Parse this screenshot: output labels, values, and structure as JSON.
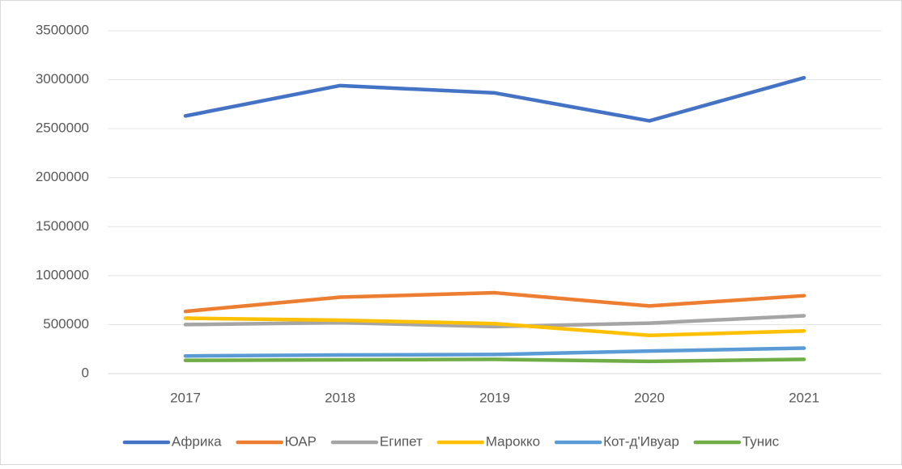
{
  "chart_data": {
    "type": "line",
    "categories": [
      "2017",
      "2018",
      "2019",
      "2020",
      "2021"
    ],
    "series": [
      {
        "name": "Африка",
        "color": "#4472c4",
        "values": [
          2630000,
          2940000,
          2865000,
          2580000,
          3020000
        ]
      },
      {
        "name": "ЮАР",
        "color": "#ed7d31",
        "values": [
          635000,
          780000,
          825000,
          690000,
          795000
        ]
      },
      {
        "name": "Египет",
        "color": "#a5a5a5",
        "values": [
          500000,
          520000,
          480000,
          515000,
          590000
        ]
      },
      {
        "name": "Марокко",
        "color": "#ffc000",
        "values": [
          565000,
          545000,
          510000,
          390000,
          435000
        ]
      },
      {
        "name": "Кот-д'Ивуар",
        "color": "#5b9bd5",
        "values": [
          180000,
          190000,
          195000,
          230000,
          260000
        ]
      },
      {
        "name": "Тунис",
        "color": "#70ad47",
        "values": [
          135000,
          140000,
          145000,
          125000,
          145000
        ]
      }
    ],
    "ylim": [
      0,
      3500000
    ],
    "yticks": [
      0,
      500000,
      1000000,
      1500000,
      2000000,
      2500000,
      3000000,
      3500000
    ],
    "grid": true,
    "legend": "bottom"
  }
}
